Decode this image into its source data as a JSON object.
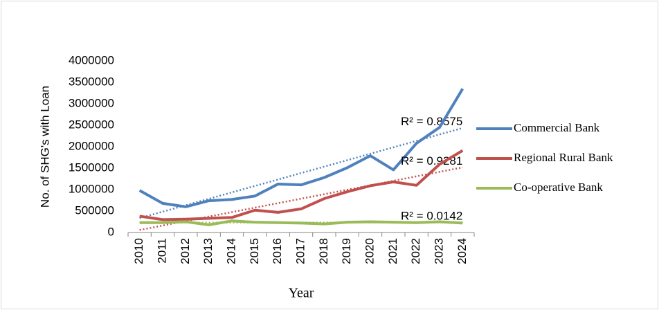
{
  "chart_data": {
    "type": "line",
    "y_axis_label": "No. of SHG's with Loan",
    "x_axis_label": "Year",
    "categories": [
      "2010",
      "2011",
      "2012",
      "2013",
      "2014",
      "2015",
      "2016",
      "2017",
      "2018",
      "2019",
      "2020",
      "2021",
      "2022",
      "2023",
      "2024"
    ],
    "series": [
      {
        "name": "Commercial Bank",
        "color": "#4f81bd",
        "trendline": "linear",
        "annotation": "R² = 0.8575",
        "values": [
          980000,
          680000,
          600000,
          740000,
          770000,
          850000,
          1130000,
          1110000,
          1280000,
          1510000,
          1790000,
          1460000,
          2080000,
          2450000,
          3350000
        ]
      },
      {
        "name": "Regional Rural Bank",
        "color": "#c0504d",
        "trendline": "linear",
        "annotation": "R² = 0.9281",
        "values": [
          380000,
          300000,
          310000,
          330000,
          350000,
          520000,
          470000,
          550000,
          790000,
          950000,
          1090000,
          1180000,
          1100000,
          1590000,
          1910000
        ]
      },
      {
        "name": "Co-operative Bank",
        "color": "#9bbb59",
        "trendline": "linear",
        "annotation": "R² = 0.0142",
        "values": [
          230000,
          230000,
          250000,
          180000,
          270000,
          240000,
          230000,
          220000,
          200000,
          240000,
          250000,
          240000,
          230000,
          250000,
          220000
        ]
      }
    ],
    "ylim": [
      0,
      4000000
    ],
    "yticks": [
      0,
      500000,
      1000000,
      1500000,
      2000000,
      2500000,
      3000000,
      3500000,
      4000000
    ],
    "grid": false,
    "legend": "right"
  }
}
